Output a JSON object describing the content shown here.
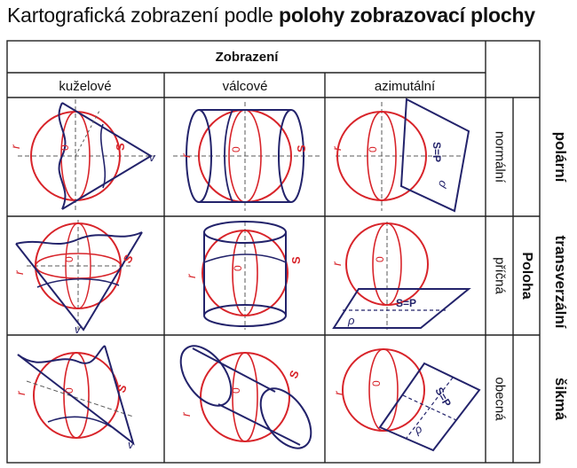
{
  "title": {
    "prefix": "Kartografická zobrazení podle ",
    "bold": "polohy zobrazovací plochy"
  },
  "table": {
    "header": "Zobrazení",
    "columns": [
      "kuželové",
      "válcové",
      "azimutální"
    ],
    "rows": [
      "normální",
      "příčná",
      "obecná"
    ],
    "side_label": "Poloha"
  },
  "outer_labels": [
    "polární",
    "transverzální",
    "šikmá"
  ],
  "symbols": {
    "r": "r",
    "s": "S",
    "o": "0",
    "s_eq_p": "S=P",
    "p": "P",
    "rho": "ρ",
    "v": "v"
  },
  "colors": {
    "globe": "#d8242a",
    "surface": "#23236b",
    "axis": "#5a5a5a",
    "grid": "#222222"
  }
}
